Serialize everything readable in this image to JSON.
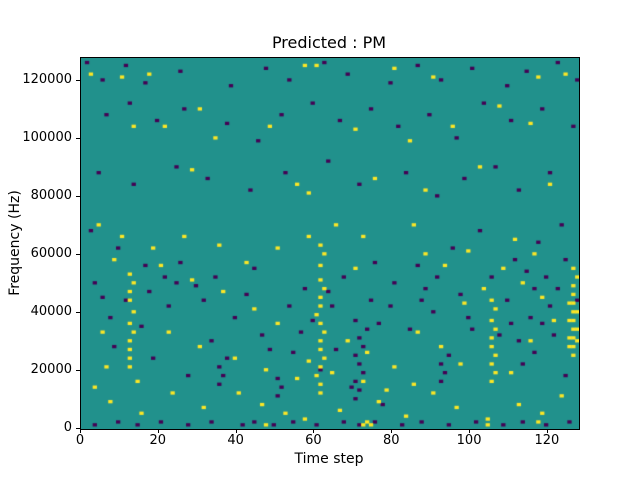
{
  "chart_data": {
    "type": "heatmap",
    "title": "Predicted : PM",
    "xlabel": "Time step",
    "ylabel": "Frequency (Hz)",
    "xlim": [
      0,
      128
    ],
    "ylim": [
      0,
      128000
    ],
    "xticks": [
      0,
      20,
      40,
      60,
      80,
      100,
      120
    ],
    "yticks": [
      0,
      20000,
      40000,
      60000,
      80000,
      100000,
      120000
    ],
    "grid": {
      "n_x": 128,
      "n_y": 128,
      "y_step_hz": 1000
    },
    "legend": "none",
    "colors": {
      "background": "#21918c",
      "low": "#440154",
      "high": "#fde725",
      "spine": "#000000"
    },
    "yellow_cells": [
      [
        12,
        21000
      ],
      [
        12,
        24000
      ],
      [
        12,
        27000
      ],
      [
        12,
        30000
      ],
      [
        13,
        33000
      ],
      [
        12,
        36000
      ],
      [
        13,
        40000
      ],
      [
        12,
        44000
      ],
      [
        12,
        47000
      ],
      [
        13,
        50000
      ],
      [
        12,
        53000
      ],
      [
        61,
        12000
      ],
      [
        61,
        15000
      ],
      [
        60,
        18000
      ],
      [
        61,
        21000
      ],
      [
        62,
        24000
      ],
      [
        61,
        27000
      ],
      [
        61,
        30000
      ],
      [
        62,
        33000
      ],
      [
        61,
        36000
      ],
      [
        60,
        39000
      ],
      [
        61,
        42000
      ],
      [
        61,
        45000
      ],
      [
        62,
        48000
      ],
      [
        61,
        51000
      ],
      [
        61,
        56000
      ],
      [
        62,
        60000
      ],
      [
        61,
        63000
      ],
      [
        105,
        16000
      ],
      [
        106,
        19000
      ],
      [
        105,
        22000
      ],
      [
        106,
        25000
      ],
      [
        105,
        28000
      ],
      [
        105,
        31000
      ],
      [
        106,
        34000
      ],
      [
        105,
        37000
      ],
      [
        106,
        41000
      ],
      [
        105,
        44000
      ],
      [
        126,
        25000
      ],
      [
        125,
        28000
      ],
      [
        126,
        28000
      ],
      [
        127,
        30000
      ],
      [
        125,
        31000
      ],
      [
        126,
        31000
      ],
      [
        126,
        34000
      ],
      [
        127,
        34000
      ],
      [
        125,
        37000
      ],
      [
        126,
        37000
      ],
      [
        126,
        40000
      ],
      [
        127,
        40000
      ],
      [
        125,
        43000
      ],
      [
        126,
        43000
      ],
      [
        126,
        46000
      ],
      [
        126,
        49000
      ],
      [
        127,
        52000
      ],
      [
        126,
        55000
      ],
      [
        2,
        122000
      ],
      [
        10,
        121000
      ],
      [
        17,
        122000
      ],
      [
        30,
        110000
      ],
      [
        57,
        125000
      ],
      [
        60,
        125000
      ],
      [
        80,
        124000
      ],
      [
        90,
        121000
      ],
      [
        107,
        111000
      ],
      [
        117,
        121000
      ],
      [
        124,
        122000
      ],
      [
        13,
        104000
      ],
      [
        21,
        104000
      ],
      [
        34,
        100000
      ],
      [
        48,
        104000
      ],
      [
        70,
        103000
      ],
      [
        84,
        99000
      ],
      [
        95,
        104000
      ],
      [
        115,
        105000
      ],
      [
        28,
        89000
      ],
      [
        55,
        84000
      ],
      [
        58,
        81000
      ],
      [
        75,
        86000
      ],
      [
        88,
        82000
      ],
      [
        102,
        90000
      ],
      [
        120,
        84000
      ],
      [
        8,
        58000
      ],
      [
        20,
        56000
      ],
      [
        28,
        51000
      ],
      [
        36,
        47000
      ],
      [
        44,
        41000
      ],
      [
        50,
        36000
      ],
      [
        68,
        30000
      ],
      [
        73,
        26000
      ],
      [
        80,
        21000
      ],
      [
        86,
        33000
      ],
      [
        92,
        28000
      ],
      [
        97,
        22000
      ],
      [
        110,
        19000
      ],
      [
        115,
        30000
      ],
      [
        40,
        12000
      ],
      [
        46,
        8000
      ],
      [
        52,
        5000
      ],
      [
        57,
        3000
      ],
      [
        66,
        6000
      ],
      [
        76,
        9000
      ],
      [
        83,
        4000
      ],
      [
        96,
        7000
      ],
      [
        104,
        3000
      ],
      [
        112,
        8000
      ],
      [
        118,
        5000
      ],
      [
        123,
        11000
      ],
      [
        5,
        33000
      ],
      [
        3,
        14000
      ],
      [
        7,
        9000
      ],
      [
        15,
        5000
      ],
      [
        23,
        12000
      ],
      [
        31,
        7000
      ],
      [
        88,
        60000
      ],
      [
        93,
        56000
      ],
      [
        99,
        61000
      ],
      [
        70,
        55000
      ],
      [
        65,
        70000
      ],
      [
        72,
        66000
      ],
      [
        85,
        70000
      ],
      [
        58,
        66000
      ],
      [
        50,
        62000
      ],
      [
        42,
        57000
      ],
      [
        35,
        63000
      ],
      [
        26,
        66000
      ],
      [
        18,
        62000
      ],
      [
        10,
        66000
      ],
      [
        4,
        70000
      ],
      [
        55,
        17000
      ],
      [
        47,
        20000
      ],
      [
        39,
        24000
      ],
      [
        30,
        28000
      ],
      [
        22,
        33000
      ],
      [
        14,
        16000
      ],
      [
        6,
        21000
      ],
      [
        118,
        45000
      ],
      [
        113,
        50000
      ],
      [
        108,
        55000
      ],
      [
        103,
        48000
      ],
      [
        98,
        43000
      ],
      [
        121,
        37000
      ],
      [
        116,
        60000
      ],
      [
        111,
        65000
      ],
      [
        90,
        12000
      ],
      [
        85,
        15000
      ],
      [
        78,
        13000
      ],
      [
        72,
        16000
      ],
      [
        64,
        19000
      ],
      [
        58,
        23000
      ],
      [
        72,
        1000
      ],
      [
        73,
        2000
      ],
      [
        74,
        1000
      ],
      [
        104,
        1000
      ],
      [
        117,
        2000
      ],
      [
        47,
        1000
      ]
    ],
    "dark_cells": [
      [
        3,
        1000
      ],
      [
        9,
        2000
      ],
      [
        14,
        1000
      ],
      [
        20,
        2000
      ],
      [
        27,
        1000
      ],
      [
        33,
        2000
      ],
      [
        41,
        1000
      ],
      [
        44,
        2000
      ],
      [
        49,
        1000
      ],
      [
        54,
        2000
      ],
      [
        60,
        1000
      ],
      [
        67,
        2000
      ],
      [
        71,
        1000
      ],
      [
        75,
        2000
      ],
      [
        82,
        1000
      ],
      [
        87,
        2000
      ],
      [
        94,
        1000
      ],
      [
        101,
        2000
      ],
      [
        108,
        1000
      ],
      [
        113,
        2000
      ],
      [
        119,
        1000
      ],
      [
        125,
        2000
      ],
      [
        1,
        126000
      ],
      [
        5,
        120000
      ],
      [
        11,
        125000
      ],
      [
        16,
        119000
      ],
      [
        25,
        123000
      ],
      [
        38,
        118000
      ],
      [
        47,
        124000
      ],
      [
        53,
        120000
      ],
      [
        62,
        126000
      ],
      [
        68,
        122000
      ],
      [
        79,
        119000
      ],
      [
        86,
        125000
      ],
      [
        92,
        120000
      ],
      [
        100,
        124000
      ],
      [
        109,
        118000
      ],
      [
        114,
        123000
      ],
      [
        122,
        126000
      ],
      [
        127,
        120000
      ],
      [
        6,
        108000
      ],
      [
        12,
        112000
      ],
      [
        19,
        106000
      ],
      [
        26,
        110000
      ],
      [
        37,
        105000
      ],
      [
        45,
        99000
      ],
      [
        51,
        108000
      ],
      [
        59,
        112000
      ],
      [
        66,
        106000
      ],
      [
        74,
        110000
      ],
      [
        81,
        104000
      ],
      [
        89,
        108000
      ],
      [
        96,
        100000
      ],
      [
        103,
        112000
      ],
      [
        110,
        106000
      ],
      [
        118,
        110000
      ],
      [
        126,
        104000
      ],
      [
        4,
        88000
      ],
      [
        13,
        84000
      ],
      [
        24,
        90000
      ],
      [
        32,
        86000
      ],
      [
        43,
        82000
      ],
      [
        52,
        88000
      ],
      [
        63,
        92000
      ],
      [
        71,
        84000
      ],
      [
        83,
        88000
      ],
      [
        91,
        80000
      ],
      [
        98,
        86000
      ],
      [
        106,
        90000
      ],
      [
        112,
        82000
      ],
      [
        120,
        88000
      ],
      [
        2,
        68000
      ],
      [
        9,
        62000
      ],
      [
        16,
        56000
      ],
      [
        24,
        50000
      ],
      [
        31,
        44000
      ],
      [
        39,
        38000
      ],
      [
        46,
        32000
      ],
      [
        54,
        26000
      ],
      [
        61,
        20000
      ],
      [
        69,
        14000
      ],
      [
        77,
        8000
      ],
      [
        84,
        34000
      ],
      [
        90,
        40000
      ],
      [
        97,
        46000
      ],
      [
        105,
        52000
      ],
      [
        111,
        58000
      ],
      [
        117,
        64000
      ],
      [
        123,
        70000
      ],
      [
        70,
        10000
      ],
      [
        71,
        13000
      ],
      [
        70,
        16000
      ],
      [
        72,
        19000
      ],
      [
        71,
        22000
      ],
      [
        70,
        25000
      ],
      [
        72,
        28000
      ],
      [
        71,
        31000
      ],
      [
        73,
        34000
      ],
      [
        70,
        37000
      ],
      [
        35,
        15000
      ],
      [
        36,
        18000
      ],
      [
        35,
        21000
      ],
      [
        37,
        24000
      ],
      [
        92,
        16000
      ],
      [
        93,
        19000
      ],
      [
        92,
        22000
      ],
      [
        94,
        25000
      ],
      [
        50,
        11000
      ],
      [
        51,
        14000
      ],
      [
        50,
        17000
      ],
      [
        8,
        28000
      ],
      [
        15,
        35000
      ],
      [
        22,
        42000
      ],
      [
        29,
        49000
      ],
      [
        44,
        55000
      ],
      [
        57,
        48000
      ],
      [
        64,
        42000
      ],
      [
        76,
        36000
      ],
      [
        88,
        48000
      ],
      [
        100,
        34000
      ],
      [
        116,
        26000
      ],
      [
        124,
        18000
      ],
      [
        5,
        45000
      ],
      [
        18,
        24000
      ],
      [
        27,
        18000
      ],
      [
        33,
        30000
      ],
      [
        48,
        27000
      ],
      [
        56,
        33000
      ],
      [
        65,
        27000
      ],
      [
        74,
        44000
      ],
      [
        80,
        50000
      ],
      [
        86,
        56000
      ],
      [
        95,
        62000
      ],
      [
        102,
        68000
      ],
      [
        109,
        44000
      ],
      [
        115,
        38000
      ],
      [
        121,
        32000
      ],
      [
        127,
        44000
      ],
      [
        3,
        50000
      ],
      [
        7,
        38000
      ],
      [
        11,
        44000
      ],
      [
        17,
        47000
      ],
      [
        21,
        52000
      ],
      [
        25,
        57000
      ],
      [
        34,
        52000
      ],
      [
        42,
        46000
      ],
      [
        53,
        42000
      ],
      [
        59,
        37000
      ],
      [
        63,
        47000
      ],
      [
        67,
        52000
      ],
      [
        75,
        57000
      ],
      [
        79,
        42000
      ],
      [
        87,
        44000
      ],
      [
        91,
        52000
      ],
      [
        99,
        38000
      ],
      [
        107,
        32000
      ],
      [
        113,
        22000
      ],
      [
        119,
        52000
      ],
      [
        124,
        58000
      ],
      [
        122,
        48000
      ],
      [
        120,
        42000
      ],
      [
        118,
        36000
      ],
      [
        116,
        48000
      ],
      [
        114,
        54000
      ],
      [
        112,
        30000
      ],
      [
        110,
        36000
      ]
    ]
  }
}
